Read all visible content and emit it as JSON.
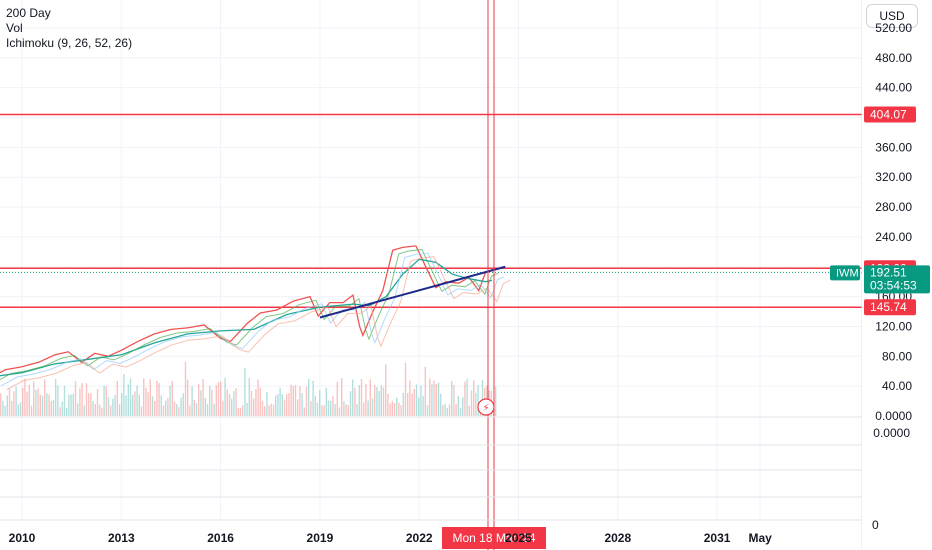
{
  "legend": {
    "items": [
      "200 Day",
      "Vol",
      "Ichimoku (9, 26, 52, 26)"
    ]
  },
  "currency_button": "USD",
  "crosshair_date_label": "Mon 18 Mar '24",
  "lower_pane_value": "0.0000",
  "lower_pane_zero": "0",
  "symbol": {
    "ticker": "IWM",
    "last_price": "192.51",
    "countdown": "03:54:53"
  },
  "colors": {
    "price_line": "#ef5350",
    "ma_200": "#26a69a",
    "hline": "#f23645",
    "trendline": "#1e2a8a",
    "label_green": "#089981",
    "label_red": "#f23645"
  },
  "chart_data": {
    "type": "line",
    "y_ticks": [
      "520.00",
      "480.00",
      "440.00",
      "400.00",
      "360.00",
      "320.00",
      "280.00",
      "240.00",
      "200.00",
      "160.00",
      "120.00",
      "80.00",
      "40.00",
      "0.0000"
    ],
    "x_ticks": [
      "2010",
      "2013",
      "2016",
      "2019",
      "2022",
      "2025",
      "2028",
      "2031",
      "May"
    ],
    "ylim": [
      0,
      540
    ],
    "horizontal_lines": [
      {
        "value": 404.07,
        "label": "404.07"
      },
      {
        "value": 198.0,
        "label": "198.00"
      },
      {
        "value": 145.74,
        "label": "145.74"
      }
    ],
    "trendline": [
      {
        "x": 2019.0,
        "y": 132
      },
      {
        "x": 2024.6,
        "y": 200
      }
    ],
    "current_price": 192.51,
    "series": [
      {
        "x": [
          2009.0,
          2009.5,
          2010.0,
          2010.5,
          2011.0,
          2011.4,
          2011.8,
          2012.2,
          2012.6,
          2013.0,
          2013.5,
          2014.0,
          2014.5,
          2015.0,
          2015.5,
          2016.0,
          2016.3,
          2016.8,
          2017.2,
          2017.7,
          2018.2,
          2018.7,
          2018.95,
          2019.3,
          2019.7,
          2020.0,
          2020.2,
          2020.3,
          2020.6,
          2020.9,
          2021.2,
          2021.5,
          2021.9,
          2022.2,
          2022.5,
          2022.8,
          2023.2,
          2023.5,
          2023.8,
          2024.0,
          2024.2
        ],
        "y": [
          50,
          62,
          66,
          72,
          82,
          86,
          72,
          84,
          80,
          88,
          100,
          110,
          116,
          118,
          122,
          104,
          100,
          124,
          138,
          142,
          154,
          160,
          134,
          152,
          152,
          162,
          120,
          108,
          140,
          168,
          222,
          226,
          228,
          200,
          172,
          180,
          178,
          186,
          168,
          192,
          196
        ]
      },
      {
        "x": [
          2009.0,
          2010.0,
          2011.0,
          2012.0,
          2013.0,
          2014.0,
          2015.0,
          2016.0,
          2017.0,
          2018.0,
          2019.0,
          2020.0,
          2020.5,
          2021.0,
          2021.5,
          2022.0,
          2022.5,
          2023.0,
          2023.5,
          2024.0,
          2024.2
        ],
        "y": [
          52,
          58,
          70,
          76,
          82,
          98,
          110,
          114,
          116,
          136,
          146,
          150,
          148,
          160,
          190,
          210,
          206,
          190,
          184,
          180,
          182
        ]
      }
    ]
  }
}
